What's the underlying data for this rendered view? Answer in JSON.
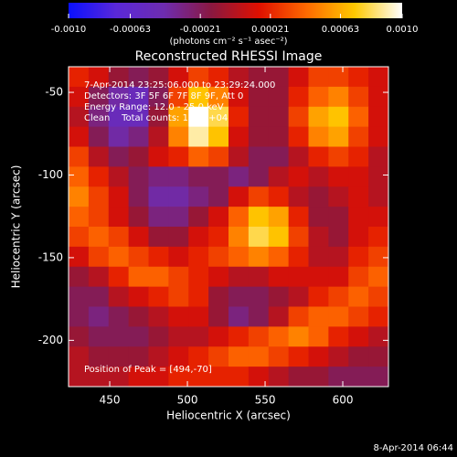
{
  "chart_data": {
    "type": "heatmap",
    "title": "Reconstructed RHESSI Image",
    "xlabel": "Heliocentric X (arcsec)",
    "ylabel": "Heliocentric Y (arcsec)",
    "colorbar_label": "(photons cm⁻² s⁻¹ asec⁻²)",
    "annotations": [
      "7-Apr-2014 23:25:06.000 to 23:29:24.000",
      "Detectors: 3F 5F 6F 7F 8F 9F, Att 0",
      "Energy Range: 12.0 - 25.0 keV",
      "Clean    Total counts: 1.23E+04",
      "Position of Peak = [494,-70]"
    ],
    "footer": "8-Apr-2014 06:44",
    "xlim": [
      423.5,
      629.4
    ],
    "xticks": [
      450,
      500,
      550,
      600
    ],
    "ylim": [
      -228,
      -34.5
    ],
    "yticks": [
      -50,
      -100,
      -150,
      -200
    ],
    "zlim": [
      -0.001,
      0.001
    ],
    "zticks": [
      {
        "value": -0.001,
        "label": "-0.0010"
      },
      -0.00063,
      -0.00021,
      0.00021,
      0.00063,
      {
        "value": 0.001,
        "label": "0.0010"
      }
    ],
    "colormap": [
      "#0a10ff",
      "#5a28d8",
      "#6e2cb0",
      "#8a1840",
      "#e01000",
      "#ff6a00",
      "#ffc800",
      "#ffffff"
    ],
    "values": [
      [
        0.0002,
        0.0001,
        -0.0001,
        -0.0002,
        -0.0001,
        0.0001,
        0.0003,
        0.0002,
        0,
        -0.0001,
        -0.0001,
        0.0001,
        0.0003,
        0.0003,
        0.0002,
        0.0001
      ],
      [
        0.0001,
        -0.0002,
        -0.0004,
        -0.0005,
        -0.0002,
        0.0003,
        0.0007,
        0.0005,
        0.0001,
        -0.0001,
        -0.0001,
        0.0002,
        0.0004,
        0.0005,
        0.0003,
        0.0001
      ],
      [
        0,
        -0.0003,
        -0.0005,
        -0.0005,
        -0.0001,
        0.0006,
        0.001,
        0.0008,
        0.0002,
        -0.0001,
        -0.0001,
        0.0003,
        0.0006,
        0.0007,
        0.0004,
        0.0001
      ],
      [
        0.0001,
        -0.0002,
        -0.0004,
        -0.0003,
        0,
        0.0005,
        0.0009,
        0.0007,
        0.0001,
        -0.0001,
        -0.0001,
        0.0002,
        0.0005,
        0.0006,
        0.0003,
        0.0001
      ],
      [
        0.0003,
        0,
        -0.0002,
        -0.0001,
        0.0001,
        0.0002,
        0.0004,
        0.0003,
        0,
        -0.0002,
        -0.0002,
        0,
        0.0002,
        0.0003,
        0.0002,
        0
      ],
      [
        0.0004,
        0.0002,
        0,
        -0.0002,
        -0.0003,
        -0.0003,
        -0.0002,
        -0.0002,
        -0.0003,
        -0.0002,
        0,
        0.0001,
        0,
        0.0001,
        0.0001,
        0
      ],
      [
        0.0005,
        0.0003,
        0.0001,
        -0.0002,
        -0.0004,
        -0.0004,
        -0.0003,
        -0.0002,
        0.0001,
        0.0003,
        0.0002,
        0,
        -0.0001,
        0,
        0.0001,
        0
      ],
      [
        0.0004,
        0.0003,
        0.0001,
        -0.0001,
        -0.0003,
        -0.0003,
        -0.0001,
        0.0001,
        0.0004,
        0.0007,
        0.0006,
        0.0002,
        -0.0001,
        -0.0001,
        0.0001,
        0.0001
      ],
      [
        0.0003,
        0.0004,
        0.0003,
        0.0001,
        -0.0001,
        -0.0001,
        0.0001,
        0.0002,
        0.0005,
        0.0008,
        0.0007,
        0.0003,
        0,
        -0.0001,
        0.0001,
        0.0002
      ],
      [
        0.0001,
        0.0003,
        0.0004,
        0.0003,
        0.0002,
        0.0001,
        0.0002,
        0.0003,
        0.0004,
        0.0005,
        0.0004,
        0.0002,
        0,
        0,
        0.0002,
        0.0003
      ],
      [
        -0.0001,
        0,
        0.0002,
        0.0004,
        0.0004,
        0.0003,
        0.0002,
        0.0001,
        0,
        0,
        0.0001,
        0.0001,
        0.0001,
        0.0001,
        0.0003,
        0.0004
      ],
      [
        -0.0002,
        -0.0002,
        0,
        0.0001,
        0.0002,
        0.0003,
        0.0002,
        -0.0001,
        -0.0002,
        -0.0002,
        -0.0001,
        0,
        0.0002,
        0.0003,
        0.0004,
        0.0003
      ],
      [
        -0.0002,
        -0.0003,
        -0.0002,
        -0.0001,
        0,
        0.0001,
        0.0001,
        -0.0001,
        -0.0003,
        -0.0002,
        0,
        0.0003,
        0.0004,
        0.0004,
        0.0003,
        0.0002
      ],
      [
        -0.0001,
        -0.0002,
        -0.0002,
        -0.0002,
        -0.0001,
        0,
        0,
        0.0001,
        0.0002,
        0.0003,
        0.0004,
        0.0005,
        0.0004,
        0.0002,
        0.0001,
        0
      ],
      [
        0,
        -0.0001,
        -0.0001,
        -0.0001,
        0,
        0.0001,
        0.0002,
        0.0003,
        0.0004,
        0.0004,
        0.0003,
        0.0002,
        0.0001,
        0,
        -0.0001,
        -0.0001
      ],
      [
        0,
        0,
        0,
        0.0001,
        0.0001,
        0.0002,
        0.0002,
        0.0002,
        0.0002,
        0.0001,
        0,
        -0.0001,
        -0.0001,
        -0.0002,
        -0.0002,
        -0.0002
      ]
    ]
  }
}
